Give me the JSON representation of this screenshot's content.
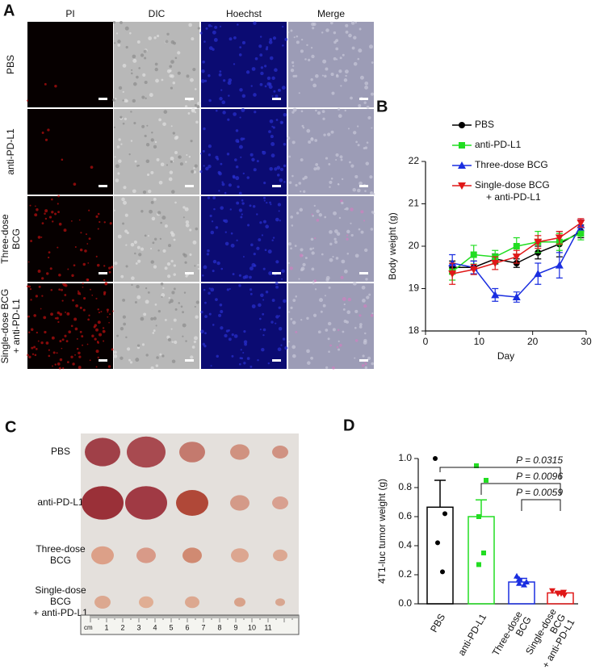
{
  "panels": {
    "a": {
      "label": "A",
      "columns": [
        "PI",
        "DIC",
        "Hoechst",
        "Merge"
      ],
      "rows": [
        [
          "PBS"
        ],
        [
          "anti-PD-L1"
        ],
        [
          "Three-dose",
          "BCG"
        ],
        [
          "Single-dose BCG",
          "+ anti-PD-L1"
        ]
      ]
    },
    "b": {
      "label": "B"
    },
    "c": {
      "label": "C",
      "rows": [
        [
          "PBS"
        ],
        [
          "anti-PD-L1"
        ],
        [
          "Three-dose",
          "BCG"
        ],
        [
          "Single-dose",
          "BCG",
          "+ anti-PD-L1"
        ]
      ],
      "ruler_unit": "cm",
      "ruler": [
        "1",
        "2",
        "3",
        "4",
        "5",
        "6",
        "7",
        "8",
        "9",
        "10",
        "11"
      ]
    },
    "d": {
      "label": "D"
    }
  },
  "chart_data": [
    {
      "type": "line",
      "xlabel": "Day",
      "ylabel": "Body weight (g)",
      "x": [
        5,
        9,
        13,
        17,
        21,
        25,
        29
      ],
      "xlim": [
        0,
        30
      ],
      "xticks": [
        0,
        10,
        20,
        30
      ],
      "ylim": [
        18,
        22
      ],
      "yticks": [
        18,
        19,
        20,
        21,
        22
      ],
      "series": [
        {
          "name": "PBS",
          "color": "#000000",
          "marker": "circle",
          "values": [
            19.5,
            19.5,
            19.7,
            19.6,
            19.85,
            20.05,
            20.35
          ],
          "errors": [
            0.15,
            0.15,
            0.12,
            0.1,
            0.15,
            0.3,
            0.15
          ]
        },
        {
          "name": "anti-PD-L1",
          "color": "#22dd22",
          "marker": "square",
          "values": [
            19.4,
            19.8,
            19.75,
            20.0,
            20.1,
            20.1,
            20.3
          ],
          "errors": [
            0.2,
            0.22,
            0.15,
            0.2,
            0.25,
            0.2,
            0.15
          ]
        },
        {
          "name": "Three-dose BCG",
          "color": "#1a2ee0",
          "marker": "triangle",
          "values": [
            19.6,
            19.5,
            18.85,
            18.8,
            19.35,
            19.55,
            20.5
          ],
          "errors": [
            0.2,
            0.15,
            0.15,
            0.12,
            0.25,
            0.3,
            0.12
          ]
        },
        {
          "name": "Single-dose BCG + anti-PD-L1",
          "color": "#e01818",
          "marker": "triangle-down",
          "values": [
            19.35,
            19.45,
            19.6,
            19.75,
            20.1,
            20.2,
            20.55
          ],
          "errors": [
            0.25,
            0.12,
            0.15,
            0.15,
            0.15,
            0.15,
            0.1
          ]
        }
      ]
    },
    {
      "type": "bar",
      "ylabel": "4T1-luc tumor weight (g)",
      "categories": [
        [
          "PBS"
        ],
        [
          "anti-PD-L1"
        ],
        [
          "Three-dose",
          "BCG"
        ],
        [
          "Single-dose",
          "BCG",
          "+ anti-PD-L1"
        ]
      ],
      "values": [
        0.665,
        0.6,
        0.15,
        0.075
      ],
      "errors": [
        0.185,
        0.115,
        0.025,
        0.012
      ],
      "colors": [
        "#000000",
        "#22dd22",
        "#1a2ee0",
        "#e01818"
      ],
      "points": [
        [
          1.0,
          0.62,
          0.42,
          0.22
        ],
        [
          0.95,
          0.85,
          0.6,
          0.35,
          0.27
        ],
        [
          0.19,
          0.15,
          0.14,
          0.13,
          0.17
        ],
        [
          0.09,
          0.08,
          0.07,
          0.06,
          0.07
        ]
      ],
      "ylim": [
        0,
        1.0
      ],
      "yticks": [
        {
          "value": 0,
          "label": "0.0"
        },
        {
          "value": 0.2,
          "label": "0.2"
        },
        {
          "value": 0.4,
          "label": "0.4"
        },
        {
          "value": 0.6,
          "label": "0.6"
        },
        {
          "value": 0.8,
          "label": "0.8"
        },
        {
          "value": 1.0,
          "label": "1.0"
        }
      ],
      "annotations": [
        "P = 0.0315",
        "P = 0.0096",
        "P = 0.0059"
      ]
    }
  ]
}
